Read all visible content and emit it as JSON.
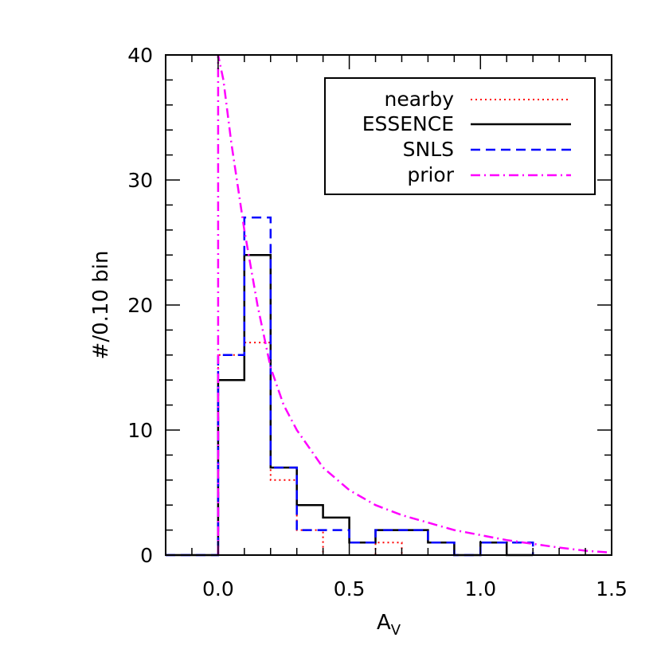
{
  "chart_data": {
    "type": "line",
    "subtype": "step-histogram",
    "xlabel": "A",
    "xlabel_subscript": "V",
    "ylabel": "#/0.10 bin",
    "xlim": [
      -0.2,
      1.5
    ],
    "ylim": [
      0,
      40
    ],
    "xticks": [
      0.0,
      0.5,
      1.0,
      1.5
    ],
    "xtick_labels": [
      "0.0",
      "0.5",
      "1.0",
      "1.5"
    ],
    "yticks": [
      0,
      10,
      20,
      30,
      40
    ],
    "ytick_labels": [
      "0",
      "10",
      "20",
      "30",
      "40"
    ],
    "grid": false,
    "legend_position": "top-right",
    "series": [
      {
        "name": "nearby",
        "style": "dotted",
        "color": "#ff0000",
        "bins": [
          [
            0.0,
            0.1,
            16
          ],
          [
            0.1,
            0.2,
            17
          ],
          [
            0.2,
            0.3,
            6
          ],
          [
            0.3,
            0.4,
            2
          ],
          [
            0.4,
            0.5,
            0
          ],
          [
            0.5,
            0.6,
            0
          ],
          [
            0.6,
            0.7,
            1
          ],
          [
            0.7,
            0.8,
            0
          ],
          [
            0.8,
            0.9,
            0
          ],
          [
            0.9,
            1.0,
            0
          ],
          [
            1.0,
            1.1,
            1
          ],
          [
            1.1,
            1.2,
            0
          ]
        ]
      },
      {
        "name": "ESSENCE",
        "style": "solid",
        "color": "#000000",
        "bins": [
          [
            0.0,
            0.1,
            14
          ],
          [
            0.1,
            0.2,
            24
          ],
          [
            0.2,
            0.3,
            7
          ],
          [
            0.3,
            0.4,
            4
          ],
          [
            0.4,
            0.5,
            3
          ],
          [
            0.5,
            0.6,
            1
          ],
          [
            0.6,
            0.7,
            2
          ],
          [
            0.7,
            0.8,
            2
          ],
          [
            0.8,
            0.9,
            1
          ],
          [
            0.9,
            1.0,
            0
          ],
          [
            1.0,
            1.1,
            1
          ],
          [
            1.1,
            1.2,
            0
          ]
        ]
      },
      {
        "name": "SNLS",
        "style": "dashed",
        "color": "#0000ff",
        "bins": [
          [
            0.0,
            0.1,
            16
          ],
          [
            0.1,
            0.2,
            27
          ],
          [
            0.2,
            0.3,
            7
          ],
          [
            0.3,
            0.4,
            2
          ],
          [
            0.4,
            0.5,
            2
          ],
          [
            0.5,
            0.6,
            1
          ],
          [
            0.6,
            0.7,
            2
          ],
          [
            0.7,
            0.8,
            2
          ],
          [
            0.8,
            0.9,
            1
          ],
          [
            0.9,
            1.0,
            0
          ],
          [
            1.0,
            1.1,
            1
          ],
          [
            1.1,
            1.2,
            1
          ]
        ]
      },
      {
        "name": "prior",
        "style": "dash-dot",
        "color": "#ff00ff",
        "x": [
          0.0,
          0.02,
          0.05,
          0.1,
          0.15,
          0.2,
          0.25,
          0.3,
          0.35,
          0.4,
          0.5,
          0.6,
          0.7,
          0.8,
          0.9,
          1.0,
          1.1,
          1.2,
          1.3,
          1.4,
          1.5
        ],
        "y": [
          40.0,
          38.0,
          33.0,
          26.0,
          20.0,
          15.0,
          12.0,
          10.0,
          8.5,
          7.0,
          5.2,
          4.0,
          3.2,
          2.6,
          2.0,
          1.6,
          1.2,
          0.9,
          0.6,
          0.35,
          0.2
        ]
      }
    ]
  }
}
